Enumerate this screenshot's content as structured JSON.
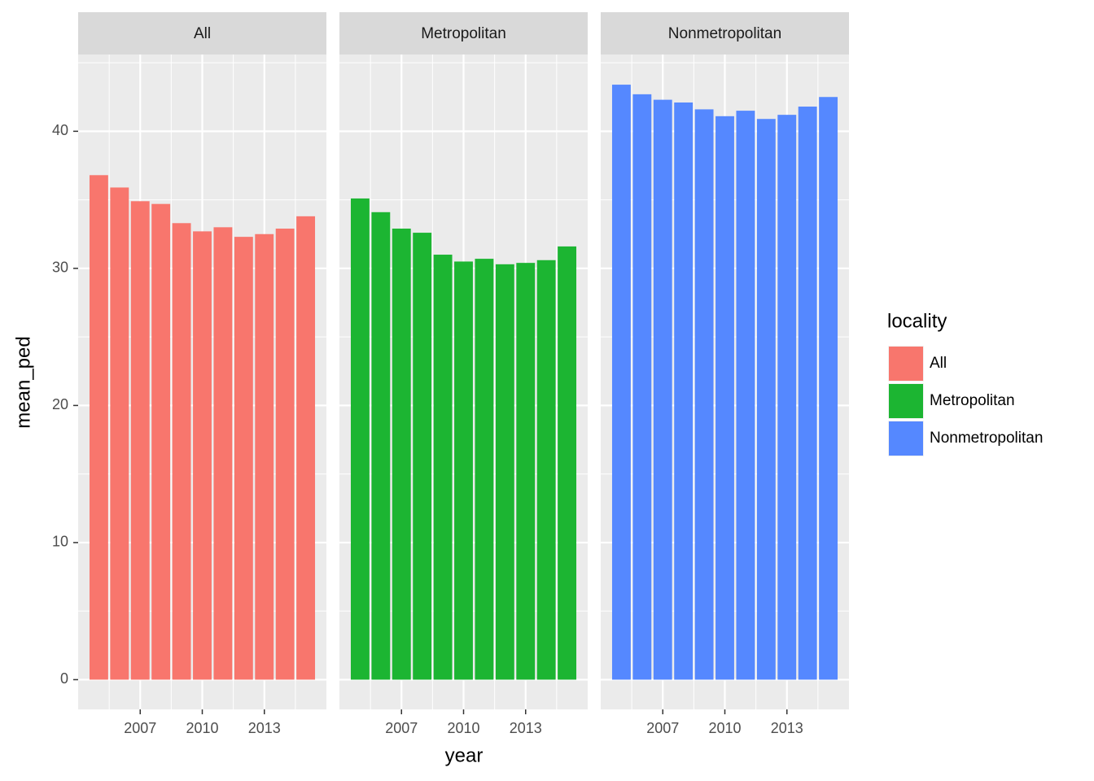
{
  "chart_data": {
    "type": "bar",
    "facets": true,
    "xlabel": "year",
    "ylabel": "mean_ped",
    "legend_title": "locality",
    "x": [
      2005,
      2006,
      2007,
      2008,
      2009,
      2010,
      2011,
      2012,
      2013,
      2014,
      2015
    ],
    "series": [
      {
        "name": "All",
        "color": "#f8766d",
        "values": [
          36.8,
          35.9,
          34.9,
          34.7,
          33.3,
          32.7,
          33.0,
          32.3,
          32.5,
          32.9,
          33.8
        ]
      },
      {
        "name": "Metropolitan",
        "color": "#1cb532",
        "values": [
          35.1,
          34.1,
          32.9,
          32.6,
          31.0,
          30.5,
          30.7,
          30.3,
          30.4,
          30.6,
          31.6
        ]
      },
      {
        "name": "Nonmetropolitan",
        "color": "#5588ff",
        "values": [
          43.4,
          42.7,
          42.3,
          42.1,
          41.6,
          41.1,
          41.5,
          40.9,
          41.2,
          41.8,
          42.5
        ]
      }
    ],
    "xlim": [
      2004,
      2016
    ],
    "xticks": [
      2007,
      2010,
      2013
    ],
    "ylim": [
      -2.17,
      45.6
    ],
    "yticks": [
      0,
      10,
      20,
      30,
      40
    ],
    "grid": true,
    "legend": "right"
  }
}
